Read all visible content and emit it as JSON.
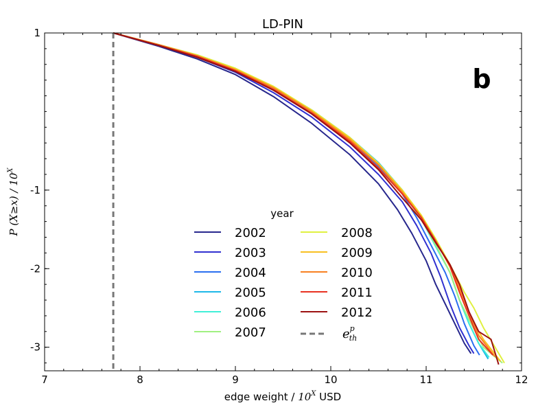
{
  "chart_data": {
    "type": "line",
    "title": "LD-PIN",
    "panel_label": "b",
    "xlabel_prefix": "edge weight / ",
    "xlabel_math": "10",
    "xlabel_sup": "X",
    "xlabel_suffix": " USD",
    "ylabel_prefix": "P (X≥x) / ",
    "ylabel_math": "10",
    "ylabel_sup": "X",
    "xlim": [
      7,
      12
    ],
    "ylim": [
      -3.3,
      1
    ],
    "xticks": [
      7,
      8,
      9,
      10,
      11,
      12
    ],
    "yticks": [
      1,
      -1,
      -2,
      -3
    ],
    "threshold_x": 7.72,
    "legend_title": "year",
    "threshold_label": "e",
    "threshold_label_sup": "p",
    "threshold_label_sub": "th",
    "series": [
      {
        "name": "2002",
        "color": "#26268c",
        "x": [
          7.72,
          8.2,
          8.6,
          9.0,
          9.4,
          9.8,
          10.2,
          10.5,
          10.7,
          10.85,
          11.0,
          11.1,
          11.2,
          11.3,
          11.4,
          11.47
        ],
        "y": [
          1,
          0.83,
          0.67,
          0.47,
          0.19,
          -0.15,
          -0.55,
          -0.92,
          -1.25,
          -1.55,
          -1.9,
          -2.2,
          -2.45,
          -2.7,
          -2.95,
          -3.08
        ]
      },
      {
        "name": "2003",
        "color": "#3030d0",
        "x": [
          7.72,
          8.2,
          8.6,
          9.0,
          9.4,
          9.8,
          10.2,
          10.5,
          10.75,
          10.9,
          11.05,
          11.15,
          11.25,
          11.35,
          11.45,
          11.5
        ],
        "y": [
          1,
          0.84,
          0.69,
          0.5,
          0.24,
          -0.07,
          -0.45,
          -0.8,
          -1.15,
          -1.45,
          -1.8,
          -2.1,
          -2.45,
          -2.75,
          -2.98,
          -3.08
        ]
      },
      {
        "name": "2004",
        "color": "#2a6ef0",
        "x": [
          7.72,
          8.2,
          8.6,
          9.0,
          9.4,
          9.8,
          10.2,
          10.5,
          10.75,
          10.9,
          11.05,
          11.2,
          11.3,
          11.4,
          11.5,
          11.56
        ],
        "y": [
          1,
          0.84,
          0.7,
          0.52,
          0.28,
          -0.02,
          -0.38,
          -0.7,
          -1.05,
          -1.35,
          -1.7,
          -2.05,
          -2.35,
          -2.7,
          -2.98,
          -3.1
        ]
      },
      {
        "name": "2005",
        "color": "#1cb8e8",
        "x": [
          7.72,
          8.2,
          8.6,
          9.0,
          9.4,
          9.8,
          10.2,
          10.5,
          10.75,
          10.95,
          11.1,
          11.25,
          11.35,
          11.45,
          11.55,
          11.65
        ],
        "y": [
          1,
          0.85,
          0.71,
          0.54,
          0.31,
          0.02,
          -0.33,
          -0.65,
          -1.0,
          -1.35,
          -1.7,
          -2.05,
          -2.4,
          -2.7,
          -2.95,
          -3.15
        ]
      },
      {
        "name": "2006",
        "color": "#40f0d8",
        "x": [
          7.72,
          8.2,
          8.6,
          9.0,
          9.4,
          9.8,
          10.2,
          10.5,
          10.75,
          10.95,
          11.1,
          11.25,
          11.35,
          11.45,
          11.55,
          11.66
        ],
        "y": [
          1,
          0.85,
          0.71,
          0.54,
          0.3,
          0.0,
          -0.35,
          -0.68,
          -1.02,
          -1.37,
          -1.72,
          -2.05,
          -2.4,
          -2.7,
          -2.95,
          -3.13
        ]
      },
      {
        "name": "2007",
        "color": "#a0f080",
        "x": [
          7.72,
          8.2,
          8.6,
          9.0,
          9.4,
          9.8,
          10.2,
          10.5,
          10.75,
          10.95,
          11.1,
          11.25,
          11.35,
          11.45,
          11.6,
          11.8
        ],
        "y": [
          1,
          0.85,
          0.72,
          0.55,
          0.31,
          0.01,
          -0.35,
          -0.68,
          -1.03,
          -1.37,
          -1.7,
          -2.05,
          -2.4,
          -2.65,
          -3.0,
          -3.2
        ]
      },
      {
        "name": "2008",
        "color": "#e0f040",
        "x": [
          7.72,
          8.2,
          8.6,
          9.0,
          9.4,
          9.8,
          10.2,
          10.5,
          10.75,
          10.95,
          11.1,
          11.25,
          11.4,
          11.5,
          11.6,
          11.82
        ],
        "y": [
          1,
          0.85,
          0.72,
          0.55,
          0.32,
          0.02,
          -0.33,
          -0.66,
          -1.0,
          -1.32,
          -1.62,
          -1.95,
          -2.3,
          -2.5,
          -2.75,
          -3.2
        ]
      },
      {
        "name": "2009",
        "color": "#f8c020",
        "x": [
          7.72,
          8.2,
          8.6,
          9.0,
          9.4,
          9.8,
          10.2,
          10.5,
          10.75,
          10.95,
          11.1,
          11.25,
          11.35,
          11.45,
          11.6,
          11.78
        ],
        "y": [
          1,
          0.85,
          0.71,
          0.54,
          0.31,
          0.01,
          -0.34,
          -0.67,
          -1.01,
          -1.33,
          -1.64,
          -1.98,
          -2.3,
          -2.6,
          -2.9,
          -3.18
        ]
      },
      {
        "name": "2010",
        "color": "#f88020",
        "x": [
          7.72,
          8.2,
          8.6,
          9.0,
          9.4,
          9.8,
          10.2,
          10.5,
          10.75,
          10.95,
          11.1,
          11.25,
          11.35,
          11.45,
          11.55,
          11.72
        ],
        "y": [
          1,
          0.85,
          0.71,
          0.53,
          0.3,
          0.0,
          -0.36,
          -0.68,
          -1.03,
          -1.35,
          -1.65,
          -1.95,
          -2.25,
          -2.55,
          -2.85,
          -3.12
        ]
      },
      {
        "name": "2011",
        "color": "#e83020",
        "x": [
          7.72,
          8.2,
          8.6,
          9.0,
          9.4,
          9.8,
          10.2,
          10.5,
          10.75,
          10.95,
          11.1,
          11.25,
          11.35,
          11.45,
          11.55,
          11.7
        ],
        "y": [
          1,
          0.84,
          0.7,
          0.52,
          0.28,
          -0.02,
          -0.38,
          -0.72,
          -1.05,
          -1.35,
          -1.65,
          -1.97,
          -2.3,
          -2.6,
          -2.9,
          -3.1
        ]
      },
      {
        "name": "2012",
        "color": "#9c1010",
        "x": [
          7.72,
          8.2,
          8.6,
          9.0,
          9.4,
          9.8,
          10.2,
          10.5,
          10.75,
          10.95,
          11.1,
          11.25,
          11.35,
          11.45,
          11.55,
          11.68,
          11.76
        ],
        "y": [
          1,
          0.84,
          0.69,
          0.51,
          0.27,
          -0.03,
          -0.4,
          -0.74,
          -1.1,
          -1.38,
          -1.67,
          -1.95,
          -2.2,
          -2.55,
          -2.8,
          -2.9,
          -3.22
        ]
      }
    ]
  }
}
